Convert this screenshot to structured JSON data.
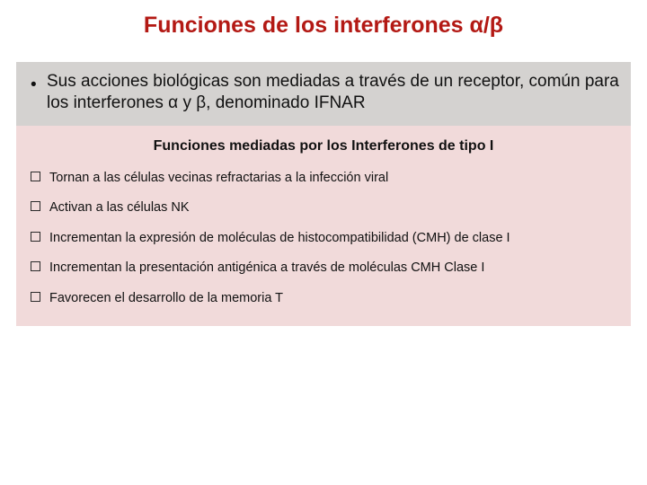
{
  "colors": {
    "title": "#b31914",
    "gray_box_bg": "#d4d2d0",
    "pink_box_bg": "#f1dada",
    "text": "#111111",
    "square_border": "#2b2b2b",
    "background": "#ffffff"
  },
  "typography": {
    "title_fontsize": 25,
    "intro_fontsize": 19,
    "subtitle_fontsize": 16,
    "item_fontsize": 14.5,
    "font_family": "Arial"
  },
  "title": "Funciones de los interferones α/β",
  "intro": "Sus acciones biológicas son mediadas a través de un receptor, común para  los interferones α y β, denominado IFNAR",
  "subtitle": "Funciones mediadas por los Interferones de tipo I",
  "items": [
    "Tornan a las células vecinas refractarias a la infección viral",
    "Activan a las células NK",
    "Incrementan  la expresión de moléculas de histocompatibilidad (CMH) de clase I",
    "Incrementan la presentación antigénica a través de moléculas CMH Clase I",
    "Favorecen el desarrollo de la memoria T"
  ]
}
